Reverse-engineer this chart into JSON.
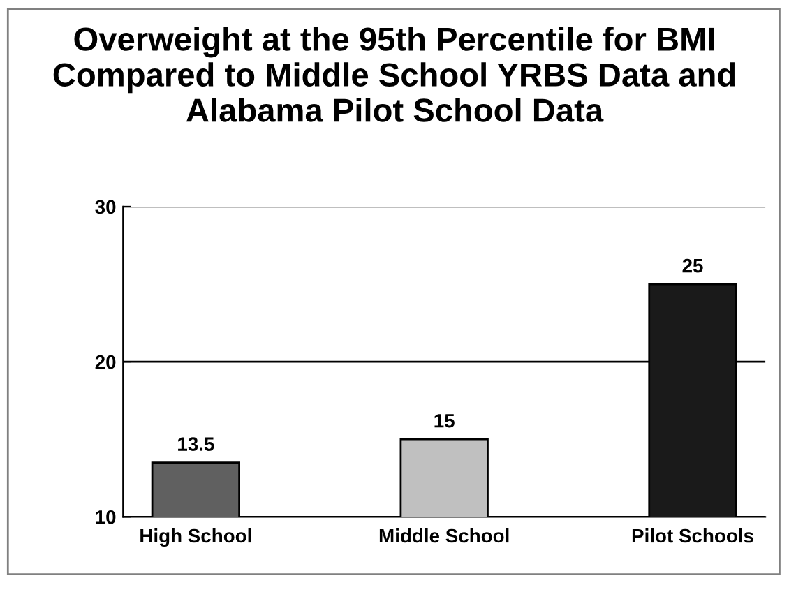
{
  "chart_data": {
    "type": "bar",
    "title": "Overweight at the 95th Percentile for BMI Compared to Middle School YRBS Data and Alabama Pilot School Data",
    "categories": [
      "High School",
      "Middle School",
      "Pilot Schools"
    ],
    "values": [
      13.5,
      15,
      25
    ],
    "colors": [
      "#606060",
      "#c0c0c0",
      "#1a1a1a"
    ],
    "ylim": [
      10,
      30
    ],
    "yticks": [
      10,
      20,
      30
    ],
    "grid": "y",
    "data_labels": true
  }
}
